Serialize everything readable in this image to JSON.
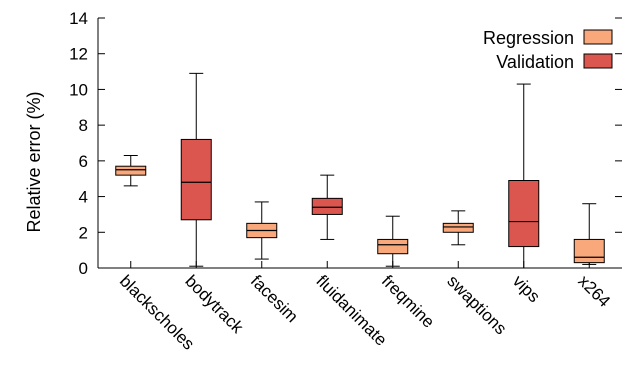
{
  "chart_data": {
    "type": "boxplot",
    "ylabel": "Relative error (%)",
    "ylim": [
      0,
      14
    ],
    "yticks": [
      0,
      2,
      4,
      6,
      8,
      10,
      12,
      14
    ],
    "legend_position": "top-right",
    "categories": [
      "blackscholes",
      "bodytrack",
      "facesim",
      "fluidanimate",
      "freqmine",
      "swaptions",
      "vips",
      "x264"
    ],
    "series": [
      {
        "name": "Regression",
        "color": "#f9a87b"
      },
      {
        "name": "Validation",
        "color": "#dc5650"
      }
    ],
    "boxes": [
      {
        "category": "blackscholes",
        "series": "Regression",
        "min": 4.6,
        "q1": 5.2,
        "median": 5.5,
        "q3": 5.7,
        "max": 6.3
      },
      {
        "category": "bodytrack",
        "series": "Validation",
        "min": 0.1,
        "q1": 2.7,
        "median": 4.8,
        "q3": 7.2,
        "max": 10.9
      },
      {
        "category": "facesim",
        "series": "Regression",
        "min": 0.5,
        "q1": 1.7,
        "median": 2.1,
        "q3": 2.5,
        "max": 3.7
      },
      {
        "category": "fluidanimate",
        "series": "Validation",
        "min": 1.6,
        "q1": 3.0,
        "median": 3.4,
        "q3": 3.9,
        "max": 5.2
      },
      {
        "category": "freqmine",
        "series": "Regression",
        "min": 0.1,
        "q1": 0.8,
        "median": 1.3,
        "q3": 1.6,
        "max": 2.9
      },
      {
        "category": "swaptions",
        "series": "Regression",
        "min": 1.3,
        "q1": 2.0,
        "median": 2.3,
        "q3": 2.5,
        "max": 3.2
      },
      {
        "category": "vips",
        "series": "Validation",
        "min": 0.0,
        "q1": 1.2,
        "median": 2.6,
        "q3": 4.9,
        "max": 10.3
      },
      {
        "category": "x264",
        "series": "Regression",
        "min": 0.2,
        "q1": 0.3,
        "median": 0.6,
        "q3": 1.6,
        "max": 3.6
      }
    ]
  }
}
